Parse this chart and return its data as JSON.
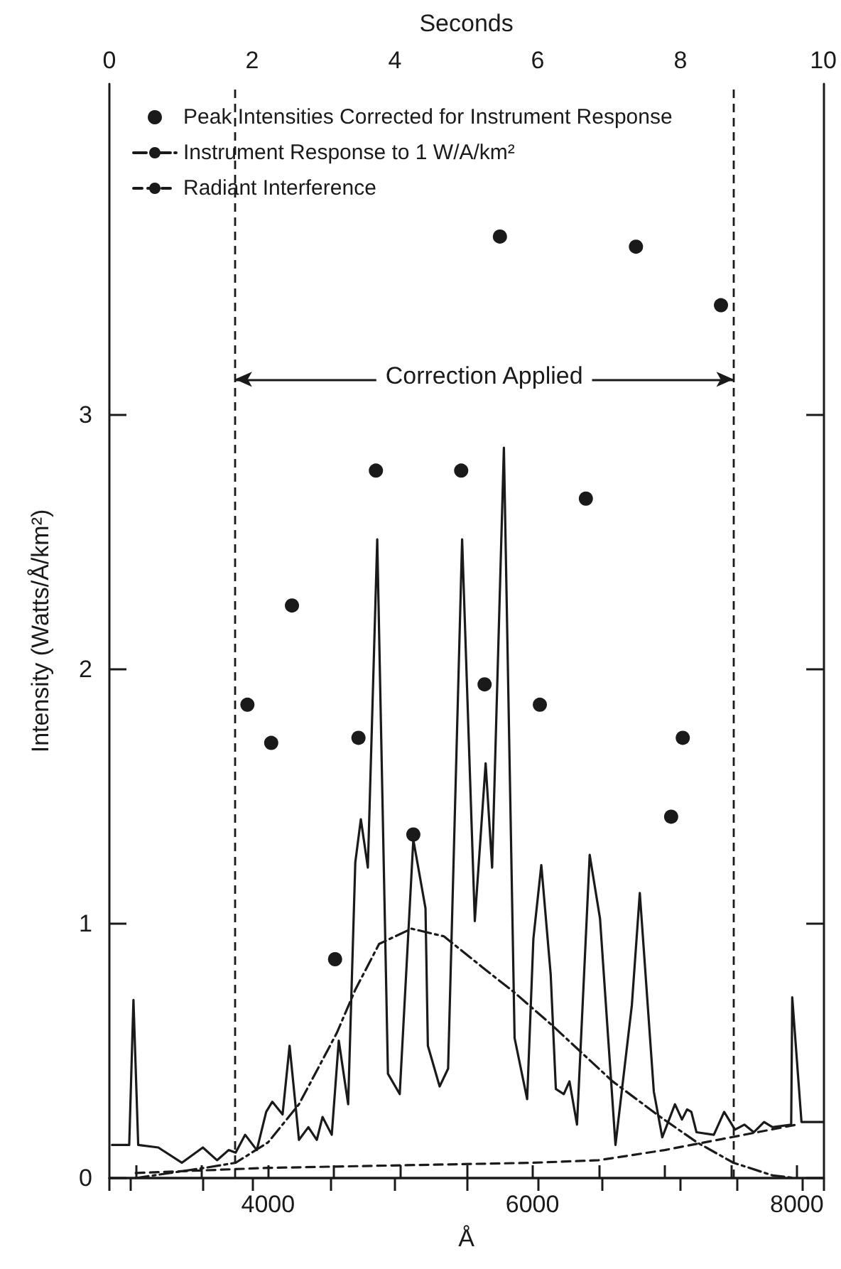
{
  "chart_data": {
    "type": "line",
    "xlabel": "Å",
    "x2label": "Seconds",
    "ylabel": "Intensity (Watts/Å/km²)",
    "xlim": [
      2800,
      8200
    ],
    "xticks": [
      {
        "value": 3000,
        "label": null
      },
      {
        "value": 3500,
        "label": null
      },
      4000,
      {
        "value": 4500,
        "label": null
      },
      {
        "value": 5000,
        "label": null
      },
      {
        "value": 5500,
        "label": null
      },
      6000,
      {
        "value": 6500,
        "label": null
      },
      {
        "value": 7000,
        "label": null
      },
      {
        "value": 7500,
        "label": null
      },
      8000
    ],
    "x2lim": [
      0,
      10
    ],
    "x2ticks": [
      0,
      {
        "value": 0.3,
        "label": null
      },
      {
        "value": 1.3,
        "label": null
      },
      2,
      {
        "value": 3.1,
        "label": null
      },
      4,
      {
        "value": 5,
        "label": null
      },
      6,
      {
        "value": 6.9,
        "label": null
      },
      8,
      {
        "value": 8.8,
        "label": null
      },
      {
        "value": 9.7,
        "label": null
      },
      10
    ],
    "ylim": [
      0,
      4.3
    ],
    "yticks": [
      0,
      1,
      2,
      3
    ],
    "legend": "top left",
    "series": [
      {
        "type": "scatter",
        "name": "Peak Intensities Corrected for Instrument Response",
        "color": "#1a1a1a",
        "marker": "circle",
        "x": [
          3844,
          4024,
          4181,
          4507,
          4684,
          4816,
          5099,
          5461,
          5638,
          5754,
          6056,
          6404,
          6783,
          7049,
          7137,
          7426
        ],
        "values": [
          1.86,
          1.71,
          2.25,
          0.86,
          1.73,
          2.78,
          1.35,
          2.78,
          1.94,
          3.7,
          1.86,
          2.67,
          3.66,
          1.42,
          1.73,
          3.43
        ]
      },
      {
        "name": "Instrument Response to 1 W/A/km²",
        "color": "#1a1a1a",
        "line_style": "dashdot",
        "x": [
          3000,
          3520,
          3755,
          4000,
          4234,
          4520,
          4660,
          4840,
          5085,
          5330,
          5617,
          5862,
          6149,
          6606,
          6968,
          7245,
          7521,
          7819,
          7989
        ],
        "values": [
          0,
          0.04,
          0.06,
          0.14,
          0.29,
          0.57,
          0.74,
          0.92,
          0.98,
          0.95,
          0.83,
          0.73,
          0.6,
          0.38,
          0.24,
          0.14,
          0.06,
          0.01,
          0
        ]
      },
      {
        "name": "Radiant Interference",
        "color": "#1a1a1a",
        "line_style": "dashed",
        "x": [
          3000,
          3500,
          4000,
          5000,
          6000,
          6500,
          7000,
          7500,
          8000
        ],
        "values": [
          0.02,
          0.03,
          0.04,
          0.05,
          0.06,
          0.07,
          0.11,
          0.16,
          0.21
        ]
      },
      {
        "color": "#1a1a1a",
        "line_style": "solid",
        "x": [
          2820,
          2950,
          2982,
          3018,
          3170,
          3348,
          3507,
          3614,
          3702,
          3755,
          3827,
          3915,
          3986,
          4032,
          4110,
          4163,
          4234,
          4305,
          4369,
          4412,
          4482,
          4535,
          4606,
          4660,
          4702,
          4755,
          4826,
          4907,
          4996,
          5099,
          5191,
          5209,
          5298,
          5362,
          5468,
          5564,
          5646,
          5695,
          5784,
          5865,
          5960,
          6007,
          6067,
          6138,
          6177,
          6237,
          6280,
          6337,
          6433,
          6511,
          6628,
          6752,
          6812,
          6918,
          6982,
          7078,
          7131,
          7170,
          7202,
          7241,
          7372,
          7450,
          7532,
          7603,
          7674,
          7752,
          7816,
          7957,
          7965,
          8035,
          8200
        ],
        "values": [
          0.13,
          0.13,
          0.7,
          0.13,
          0.12,
          0.06,
          0.12,
          0.07,
          0.11,
          0.1,
          0.17,
          0.11,
          0.26,
          0.3,
          0.25,
          0.52,
          0.15,
          0.2,
          0.15,
          0.24,
          0.17,
          0.54,
          0.29,
          1.24,
          1.41,
          1.22,
          2.51,
          0.41,
          0.33,
          1.33,
          1.06,
          0.52,
          0.36,
          0.43,
          2.51,
          1.01,
          1.63,
          1.22,
          2.87,
          0.55,
          0.31,
          0.94,
          1.23,
          0.8,
          0.35,
          0.33,
          0.38,
          0.21,
          1.27,
          1.02,
          0.13,
          0.68,
          1.12,
          0.34,
          0.16,
          0.29,
          0.23,
          0.27,
          0.26,
          0.18,
          0.17,
          0.26,
          0.19,
          0.21,
          0.18,
          0.22,
          0.2,
          0.21,
          0.71,
          0.22,
          0.22
        ]
      }
    ],
    "ref_lines": [
      {
        "axis": "x",
        "value": 3750,
        "line_style": "dashed"
      },
      {
        "axis": "x",
        "value": 7520,
        "line_style": "dashed"
      }
    ],
    "annotations": [
      "Correction Applied"
    ]
  }
}
